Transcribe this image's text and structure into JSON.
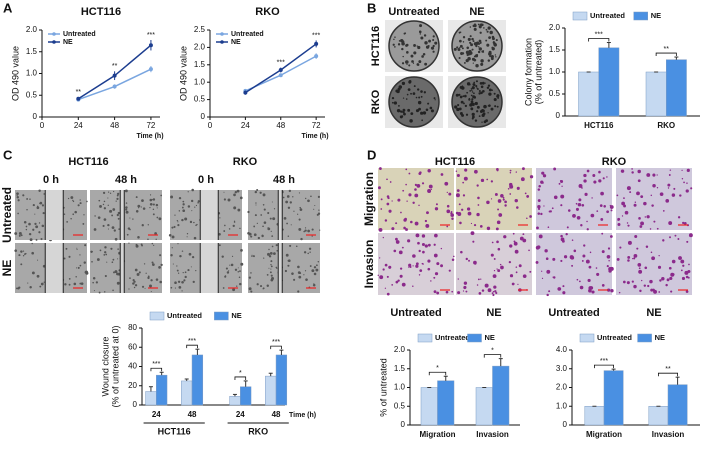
{
  "panel_labels": [
    "A",
    "B",
    "C",
    "D"
  ],
  "images": {
    "B": {
      "columns": [
        "Untreated",
        "NE"
      ],
      "rows": [
        "HCT116",
        "RKO"
      ]
    },
    "C": {
      "groups": [
        "HCT116",
        "RKO"
      ],
      "columns": [
        "0 h",
        "48 h",
        "0 h",
        "48 h"
      ],
      "rows": [
        "Untreated",
        "NE"
      ]
    },
    "D": {
      "groups": [
        "HCT116",
        "RKO"
      ],
      "rows": [
        "Migration",
        "Invasion"
      ],
      "columns": [
        "Untreated",
        "NE",
        "Untreated",
        "NE"
      ]
    }
  },
  "chart_data": [
    {
      "type": "line",
      "title": "HCT116",
      "y_label": [
        "OD 490 value"
      ],
      "x_label": "Time (h)",
      "x": [
        24,
        48,
        72
      ],
      "xlim": [
        0,
        78
      ],
      "xticks": [
        0,
        24,
        48,
        72
      ],
      "ylim": [
        0,
        2
      ],
      "yticks": [
        0,
        0.5,
        {
          "value": 1,
          "label": "1.0"
        },
        1.5,
        {
          "value": 2,
          "label": "2.0"
        }
      ],
      "series": [
        {
          "name": "Untreated",
          "color": "#7aa6e0",
          "values": [
            0.4,
            0.7,
            1.1
          ],
          "errors": [
            0.04,
            0.05,
            0.07
          ]
        },
        {
          "name": "NE",
          "color": "#1c3d8f",
          "values": [
            0.42,
            0.95,
            1.65
          ],
          "errors": [
            0.04,
            0.1,
            0.12
          ]
        }
      ],
      "annotations": [
        "**",
        "**",
        "***"
      ],
      "legend": "upper left"
    },
    {
      "type": "line",
      "title": "RKO",
      "y_label": [
        "OD 490 value"
      ],
      "x_label": "Time (h)",
      "x": [
        24,
        48,
        72
      ],
      "xlim": [
        0,
        78
      ],
      "xticks": [
        0,
        24,
        48,
        72
      ],
      "ylim": [
        0,
        2.5
      ],
      "yticks": [
        0,
        0.5,
        {
          "value": 1,
          "label": "1.0"
        },
        1.5,
        {
          "value": 2,
          "label": "2.0"
        },
        2.5
      ],
      "series": [
        {
          "name": "Untreated",
          "color": "#7aa6e0",
          "values": [
            0.75,
            1.2,
            1.75
          ],
          "errors": [
            0.05,
            0.05,
            0.08
          ]
        },
        {
          "name": "NE",
          "color": "#1c3d8f",
          "values": [
            0.7,
            1.35,
            2.1
          ],
          "errors": [
            0.06,
            0.07,
            0.1
          ]
        }
      ],
      "annotations": [
        null,
        "***",
        "***"
      ],
      "legend": "upper left"
    },
    {
      "type": "bar",
      "y_label": [
        "Colony formation",
        "(% of untreated)"
      ],
      "categories": [
        "HCT116",
        "RKO"
      ],
      "ylim": [
        0,
        2
      ],
      "yticks": [
        0,
        0.5,
        {
          "value": 1,
          "label": "1.0"
        },
        1.5,
        {
          "value": 2,
          "label": "2.0"
        }
      ],
      "series": [
        {
          "name": "Untreated",
          "color": "#c5d9f1",
          "values": [
            1,
            1
          ],
          "errors": [
            0,
            0
          ]
        },
        {
          "name": "NE",
          "color": "#4a90e2",
          "values": [
            1.55,
            1.28
          ],
          "errors": [
            0.12,
            0.06
          ]
        }
      ],
      "annotations": [
        "***",
        "**"
      ],
      "legend": "top"
    },
    {
      "type": "bar",
      "y_label": [
        "Wound closure",
        "(% of untreated at 0)"
      ],
      "x_label": "Time (h)",
      "categories": [
        "24",
        "48",
        "24",
        "48"
      ],
      "group_labels": [
        "HCT116",
        "RKO"
      ],
      "ylim": [
        0,
        80
      ],
      "yticks": [
        0,
        20,
        40,
        60,
        80
      ],
      "series": [
        {
          "name": "Untreated",
          "color": "#c5d9f1",
          "values": [
            14,
            25,
            9,
            30
          ],
          "errors": [
            5,
            2,
            2,
            3
          ]
        },
        {
          "name": "NE",
          "color": "#4a90e2",
          "values": [
            31,
            52,
            19,
            52
          ],
          "errors": [
            3,
            6,
            6,
            5
          ]
        }
      ],
      "annotations": [
        "***",
        "***",
        "*",
        "***"
      ],
      "legend": "top"
    },
    {
      "type": "bar",
      "y_label": [
        "% of untreated"
      ],
      "categories": [
        "Migration",
        "Invasion"
      ],
      "ylim": [
        0,
        2
      ],
      "yticks": [
        0,
        0.5,
        {
          "value": 1,
          "label": "1.0"
        },
        1.5,
        {
          "value": 2,
          "label": "2.0"
        }
      ],
      "series": [
        {
          "name": "Untreated",
          "color": "#c5d9f1",
          "values": [
            1,
            1
          ],
          "errors": [
            0,
            0
          ]
        },
        {
          "name": "NE",
          "color": "#4a90e2",
          "values": [
            1.18,
            1.57
          ],
          "errors": [
            0.12,
            0.2
          ]
        }
      ],
      "annotations": [
        "*",
        "*"
      ],
      "legend": "top"
    },
    {
      "type": "bar",
      "categories": [
        "Migration",
        "Invasion"
      ],
      "ylim": [
        0,
        4
      ],
      "yticks": [
        0,
        {
          "value": 1,
          "label": "1.0"
        },
        {
          "value": 2,
          "label": "2.0"
        },
        {
          "value": 3,
          "label": "3.0"
        },
        {
          "value": 4,
          "label": "4.0"
        }
      ],
      "series": [
        {
          "name": "Untreated",
          "color": "#c5d9f1",
          "values": [
            1,
            1
          ],
          "errors": [
            0,
            0
          ]
        },
        {
          "name": "NE",
          "color": "#4a90e2",
          "values": [
            2.9,
            2.15
          ],
          "errors": [
            0.08,
            0.4
          ]
        }
      ],
      "annotations": [
        "***",
        "**"
      ],
      "legend": "top"
    }
  ]
}
